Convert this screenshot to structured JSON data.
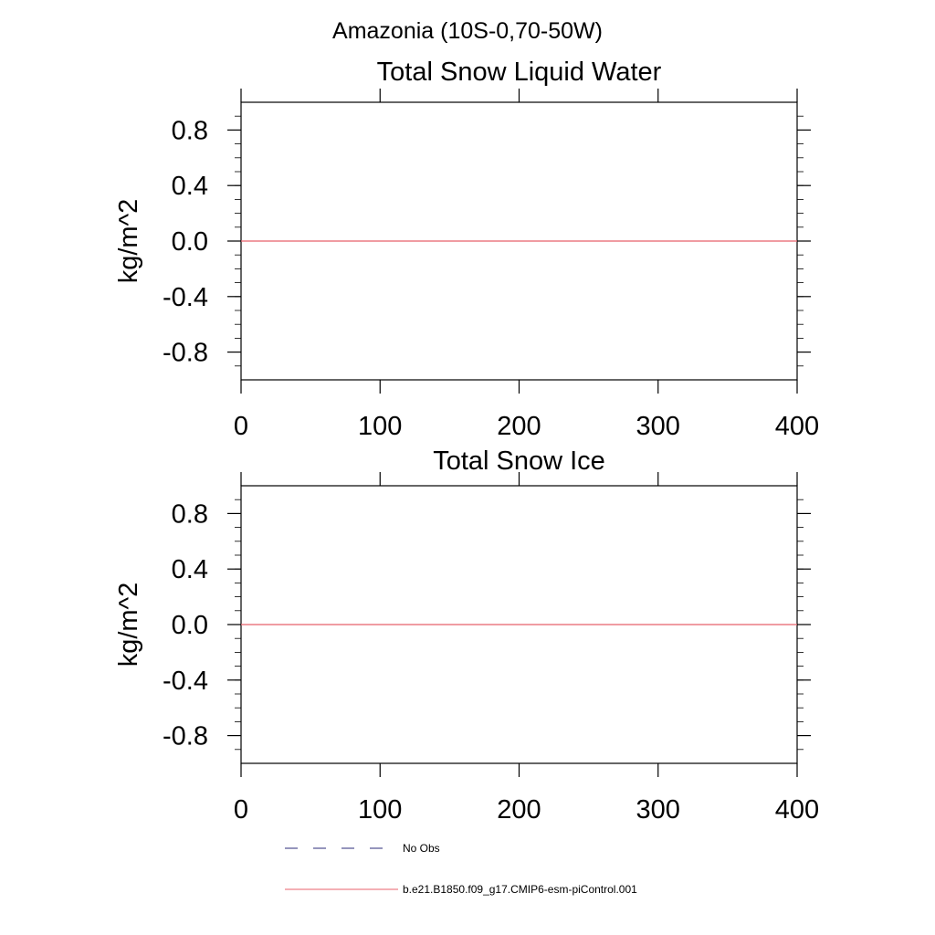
{
  "super_title": "Amazonia (10S-0,70-50W)",
  "chart_data": [
    {
      "type": "line",
      "title": "Total Snow Liquid Water",
      "xlabel": "",
      "ylabel": "kg/m^2",
      "xlim": [
        0,
        400
      ],
      "ylim": [
        -1,
        1
      ],
      "x_ticks": [
        0,
        100,
        200,
        300,
        400
      ],
      "x_tick_labels": [
        "0",
        "100",
        "200",
        "300",
        "400"
      ],
      "y_ticks": [
        0.8,
        0.4,
        0.0,
        -0.4,
        -0.8
      ],
      "y_tick_labels": [
        "0.8",
        "0.4",
        "0.0",
        "-0.4",
        "-0.8"
      ],
      "grid": false,
      "series": [
        {
          "name": "b.e21.B1850.f09_g17.CMIP6-esm-piControl.001",
          "color": "#e8616b",
          "x": [
            0,
            400
          ],
          "y": [
            0.0,
            0.0
          ]
        }
      ]
    },
    {
      "type": "line",
      "title": "Total Snow Ice",
      "xlabel": "",
      "ylabel": "kg/m^2",
      "xlim": [
        0,
        400
      ],
      "ylim": [
        -1,
        1
      ],
      "x_ticks": [
        0,
        100,
        200,
        300,
        400
      ],
      "x_tick_labels": [
        "0",
        "100",
        "200",
        "300",
        "400"
      ],
      "y_ticks": [
        0.8,
        0.4,
        0.0,
        -0.4,
        -0.8
      ],
      "y_tick_labels": [
        "0.8",
        "0.4",
        "0.0",
        "-0.4",
        "-0.8"
      ],
      "grid": false,
      "series": [
        {
          "name": "b.e21.B1850.f09_g17.CMIP6-esm-piControl.001",
          "color": "#e8616b",
          "x": [
            0,
            400
          ],
          "y": [
            0.0,
            0.0
          ]
        }
      ]
    }
  ],
  "legend": {
    "placement": "bottom",
    "items": [
      {
        "label": "No Obs",
        "style": "dashed",
        "color": "#2b2b7a"
      },
      {
        "label": "b.e21.B1850.f09_g17.CMIP6-esm-piControl.001",
        "style": "solid",
        "color": "#e8616b"
      }
    ]
  }
}
